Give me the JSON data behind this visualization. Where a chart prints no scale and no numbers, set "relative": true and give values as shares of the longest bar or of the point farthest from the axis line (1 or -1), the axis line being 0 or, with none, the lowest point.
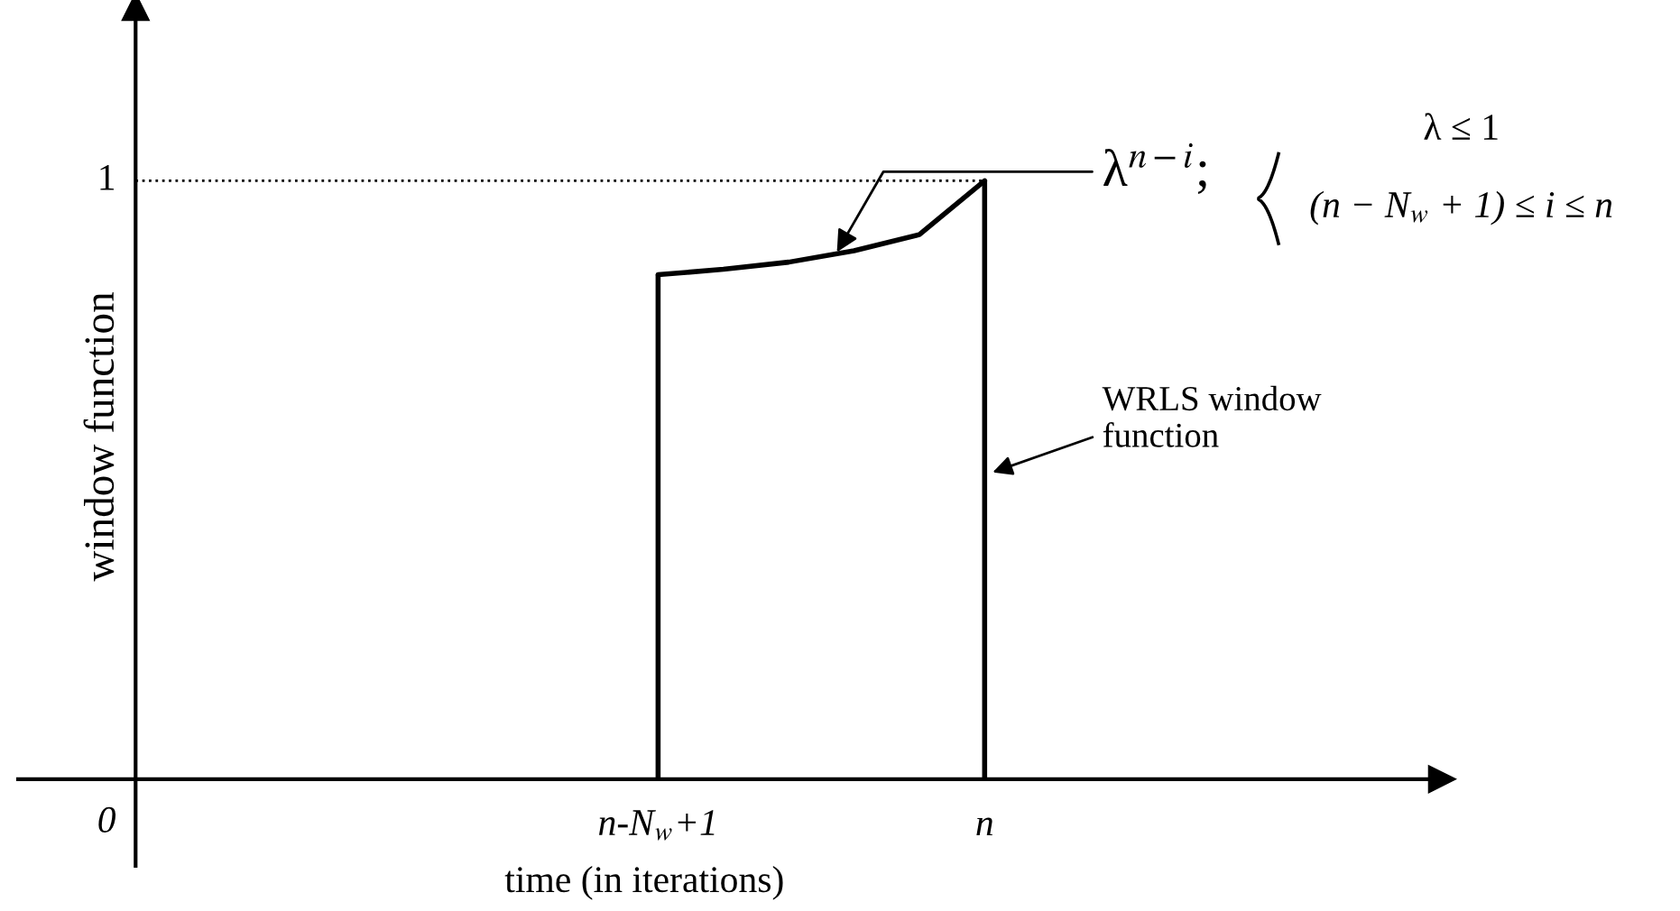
{
  "chart_data": {
    "type": "line",
    "relative": true,
    "xlabel": "time (in iterations)",
    "categories": [
      "n-N$_{w}$+1",
      null,
      null,
      null,
      null,
      "n"
    ],
    "series": [
      {
        "color": "#000000",
        "values": [
          0.843,
          0.852,
          0.864,
          0.883,
          0.91,
          1
        ]
      }
    ],
    "ref_lines": [
      {
        "axis": "y",
        "value": 1,
        "label": "1",
        "line_style": "dotted",
        "color": "#000000"
      }
    ],
    "annotations": [
      "0",
      "λ$^{n−i}$;",
      "λ ≤ 1",
      "(n − N$_{w}$ + 1) ≤ i ≤ n",
      "WRLS window\nfunction",
      "window function"
    ],
    "legend": false
  }
}
